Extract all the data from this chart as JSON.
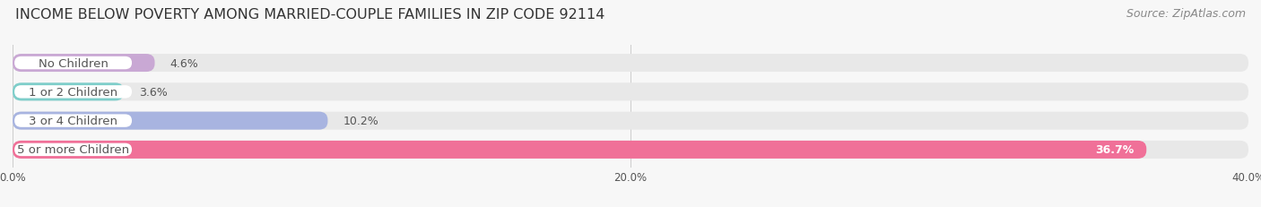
{
  "title": "INCOME BELOW POVERTY AMONG MARRIED-COUPLE FAMILIES IN ZIP CODE 92114",
  "source": "Source: ZipAtlas.com",
  "categories": [
    "No Children",
    "1 or 2 Children",
    "3 or 4 Children",
    "5 or more Children"
  ],
  "values": [
    4.6,
    3.6,
    10.2,
    36.7
  ],
  "bar_colors": [
    "#c9a8d4",
    "#7ececa",
    "#a8b4e0",
    "#f07098"
  ],
  "bar_bg_color": "#e8e8e8",
  "pill_bg_color": "#f0f0f0",
  "background_color": "#f7f7f7",
  "xlim": [
    0,
    40
  ],
  "xtick_labels": [
    "0.0%",
    "20.0%",
    "40.0%"
  ],
  "xtick_vals": [
    0.0,
    20.0,
    40.0
  ],
  "label_color": "#555555",
  "title_fontsize": 11.5,
  "source_fontsize": 9,
  "bar_label_fontsize": 9,
  "category_fontsize": 9.5,
  "value_label_color_last": "#ffffff"
}
